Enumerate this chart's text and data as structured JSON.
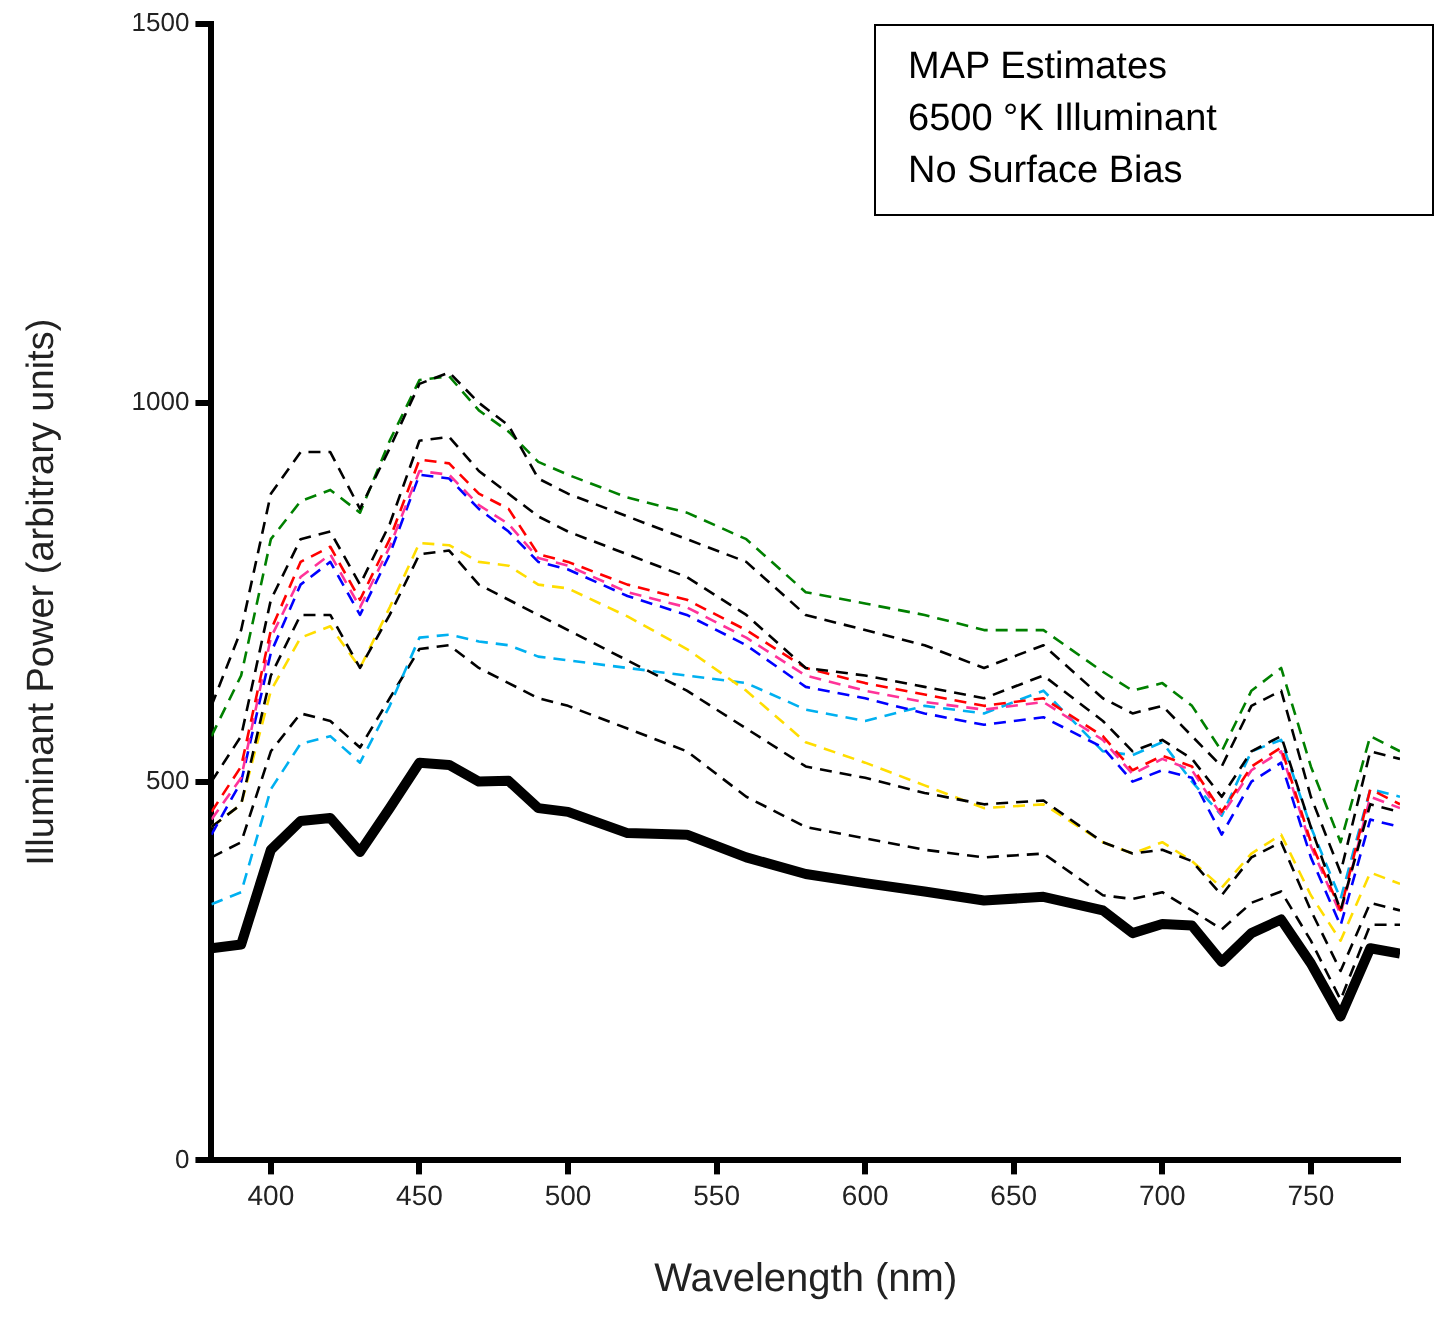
{
  "chart_data": {
    "type": "line",
    "xlabel": "Wavelength (nm)",
    "ylabel": "Illuminant Power (arbitrary units)",
    "annotations": [
      "MAP Estimates",
      "6500 °K Illuminant",
      "No Surface Bias"
    ],
    "x": [
      380,
      390,
      400,
      410,
      420,
      430,
      440,
      450,
      460,
      470,
      480,
      490,
      500,
      520,
      540,
      560,
      580,
      600,
      620,
      640,
      660,
      680,
      690,
      700,
      710,
      720,
      730,
      740,
      750,
      760,
      770,
      780
    ],
    "xlim": [
      380,
      780
    ],
    "xticks": [
      400,
      450,
      500,
      550,
      600,
      650,
      700,
      750
    ],
    "ylim": [
      0,
      1500
    ],
    "yticks": [
      0,
      500,
      1000,
      1500
    ],
    "grid": false,
    "legend": false,
    "marker": "none",
    "series": [
      {
        "color": "#000000",
        "line_style": "dashed",
        "values": [
          600,
          700,
          880,
          935,
          935,
          860,
          940,
          1025,
          1040,
          1000,
          970,
          900,
          880,
          850,
          820,
          790,
          720,
          700,
          680,
          650,
          680,
          610,
          590,
          600,
          560,
          520,
          600,
          620,
          480,
          380,
          540,
          530
        ]
      },
      {
        "color": "#008000",
        "line_style": "dashed",
        "values": [
          560,
          640,
          820,
          870,
          885,
          855,
          950,
          1030,
          1035,
          990,
          962,
          922,
          905,
          875,
          855,
          820,
          750,
          735,
          720,
          700,
          700,
          645,
          620,
          630,
          600,
          540,
          620,
          650,
          520,
          420,
          560,
          540
        ]
      },
      {
        "color": "#000000",
        "line_style": "dashed",
        "values": [
          500,
          560,
          740,
          820,
          830,
          760,
          840,
          950,
          955,
          910,
          880,
          850,
          830,
          800,
          770,
          720,
          650,
          640,
          625,
          610,
          640,
          580,
          540,
          555,
          530,
          480,
          540,
          560,
          440,
          330,
          470,
          460
        ]
      },
      {
        "color": "#ff0000",
        "line_style": "dashed",
        "values": [
          460,
          520,
          700,
          790,
          810,
          740,
          820,
          925,
          920,
          880,
          860,
          800,
          790,
          760,
          740,
          700,
          650,
          630,
          615,
          600,
          610,
          560,
          515,
          534,
          520,
          460,
          520,
          545,
          420,
          330,
          490,
          470
        ]
      },
      {
        "color": "#ff3399",
        "line_style": "dashed",
        "values": [
          450,
          505,
          690,
          770,
          800,
          730,
          810,
          910,
          905,
          865,
          840,
          795,
          785,
          750,
          730,
          690,
          640,
          620,
          605,
          595,
          605,
          555,
          510,
          530,
          515,
          455,
          515,
          540,
          415,
          325,
          480,
          465
        ]
      },
      {
        "color": "#0000ff",
        "line_style": "dashed",
        "values": [
          430,
          500,
          670,
          760,
          790,
          720,
          800,
          905,
          900,
          860,
          830,
          790,
          780,
          745,
          720,
          680,
          625,
          610,
          590,
          575,
          585,
          545,
          500,
          515,
          505,
          430,
          500,
          525,
          400,
          310,
          450,
          440
        ]
      },
      {
        "color": "#000000",
        "line_style": "dashed",
        "values": [
          440,
          470,
          640,
          720,
          720,
          650,
          720,
          800,
          805,
          760,
          740,
          720,
          700,
          660,
          620,
          570,
          520,
          505,
          485,
          470,
          475,
          420,
          405,
          410,
          395,
          350,
          400,
          420,
          330,
          250,
          340,
          330
        ]
      },
      {
        "color": "#ffdd00",
        "line_style": "dashed",
        "values": [
          440,
          470,
          620,
          690,
          705,
          650,
          730,
          815,
          812,
          790,
          785,
          760,
          755,
          718,
          675,
          620,
          552,
          525,
          495,
          465,
          470,
          420,
          405,
          420,
          395,
          360,
          405,
          430,
          350,
          290,
          380,
          365
        ]
      },
      {
        "color": "#00b0f0",
        "line_style": "dashed",
        "values": [
          338,
          354,
          490,
          550,
          560,
          525,
          600,
          690,
          694,
          685,
          680,
          665,
          660,
          650,
          640,
          630,
          595,
          580,
          600,
          590,
          620,
          540,
          535,
          552,
          500,
          455,
          540,
          555,
          440,
          345,
          490,
          480
        ]
      },
      {
        "color": "#000000",
        "line_style": "dashed",
        "values": [
          400,
          420,
          540,
          590,
          580,
          545,
          610,
          675,
          680,
          650,
          630,
          610,
          600,
          570,
          540,
          480,
          440,
          425,
          410,
          400,
          405,
          350,
          345,
          354,
          330,
          305,
          340,
          355,
          290,
          212,
          311,
          311
        ]
      },
      {
        "color": "#000000",
        "line_style": "solid",
        "values": [
          280,
          285,
          410,
          448,
          452,
          407,
          465,
          525,
          522,
          500,
          501,
          465,
          460,
          432,
          430,
          400,
          378,
          366,
          355,
          343,
          348,
          330,
          300,
          312,
          310,
          262,
          300,
          318,
          260,
          190,
          280,
          273
        ]
      }
    ]
  }
}
